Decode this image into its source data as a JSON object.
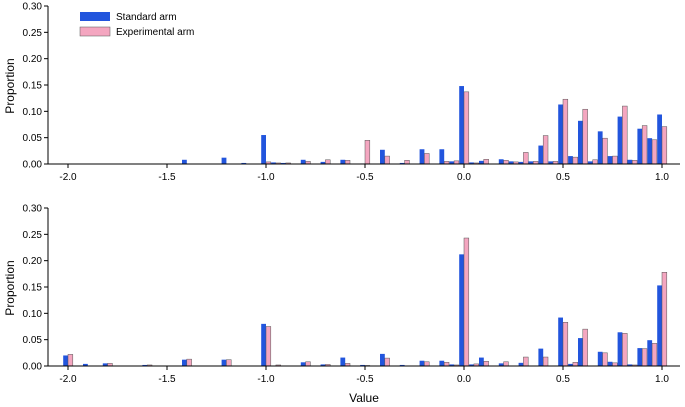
{
  "chart_data": {
    "type": "bar",
    "legend": {
      "placement": "top-left",
      "entries": [
        {
          "name": "Standard arm",
          "color": "#2255dd"
        },
        {
          "name": "Experimental arm",
          "color": "#f4a6c0"
        }
      ]
    },
    "x_label": "Value",
    "x_ticks": [
      "-2.0",
      "-1.5",
      "-1.0",
      "-0.5",
      "0.0",
      "0.5",
      "1.0"
    ],
    "x_range": [
      -2.0,
      1.0
    ],
    "x_values": [
      -2.0,
      -1.9,
      -1.8,
      -1.7,
      -1.6,
      -1.5,
      -1.4,
      -1.3,
      -1.2,
      -1.1,
      -1.0,
      -0.95,
      -0.9,
      -0.8,
      -0.7,
      -0.6,
      -0.5,
      -0.45,
      -0.4,
      -0.3,
      -0.2,
      -0.1,
      -0.05,
      0.0,
      0.05,
      0.1,
      0.15,
      0.2,
      0.25,
      0.3,
      0.35,
      0.4,
      0.45,
      0.5,
      0.55,
      0.6,
      0.65,
      0.7,
      0.75,
      0.8,
      0.85,
      0.9,
      0.95,
      1.0
    ],
    "panels": [
      {
        "y_label": "Proportion",
        "y_ticks": [
          "0.00",
          "0.05",
          "0.10",
          "0.15",
          "0.20",
          "0.25",
          "0.30"
        ],
        "y_range": [
          0,
          0.3
        ],
        "series": [
          {
            "name": "Standard arm",
            "values": [
              0,
              0,
              0,
              0,
              0,
              0,
              0.008,
              0,
              0.012,
              0.002,
              0.055,
              0.003,
              0.002,
              0.008,
              0.004,
              0.008,
              0.001,
              0,
              0.027,
              0.002,
              0.028,
              0.028,
              0.005,
              0.148,
              0.003,
              0.006,
              0,
              0.009,
              0.005,
              0.004,
              0.005,
              0.035,
              0.005,
              0.113,
              0.015,
              0.082,
              0.005,
              0.062,
              0.015,
              0.09,
              0.008,
              0.067,
              0.049,
              0.094
            ]
          },
          {
            "name": "Experimental arm",
            "values": [
              0,
              0,
              0,
              0,
              0,
              0,
              0,
              0,
              0,
              0,
              0.004,
              0.002,
              0.002,
              0.005,
              0.008,
              0.007,
              0.045,
              0,
              0.015,
              0.007,
              0.02,
              0.005,
              0.006,
              0.137,
              0.002,
              0.009,
              0,
              0.007,
              0.004,
              0.022,
              0.005,
              0.054,
              0.005,
              0.123,
              0.013,
              0.104,
              0.008,
              0.049,
              0.015,
              0.11,
              0.007,
              0.073,
              0.046,
              0.071
            ]
          }
        ]
      },
      {
        "y_label": "Proportion",
        "y_ticks": [
          "0.00",
          "0.05",
          "0.10",
          "0.15",
          "0.20",
          "0.25",
          "0.30"
        ],
        "y_range": [
          0,
          0.3
        ],
        "series": [
          {
            "name": "Standard arm",
            "values": [
              0.02,
              0.004,
              0.005,
              0,
              0.002,
              0,
              0.012,
              0,
              0.012,
              0,
              0.08,
              0,
              0,
              0.007,
              0.003,
              0.016,
              0.002,
              0,
              0.023,
              0.002,
              0.01,
              0.01,
              0.003,
              0.212,
              0.003,
              0.016,
              0,
              0.005,
              0,
              0.006,
              0,
              0.033,
              0,
              0.092,
              0.004,
              0.053,
              0,
              0.027,
              0.008,
              0.064,
              0.003,
              0.034,
              0.049,
              0.153
            ]
          },
          {
            "name": "Experimental arm",
            "values": [
              0.022,
              0,
              0.005,
              0,
              0.002,
              0,
              0.013,
              0,
              0.012,
              0,
              0.075,
              0.002,
              0,
              0.008,
              0.003,
              0.005,
              0.001,
              0,
              0.015,
              0,
              0.008,
              0.007,
              0.002,
              0.243,
              0.004,
              0.009,
              0,
              0.008,
              0,
              0.017,
              0,
              0.017,
              0,
              0.083,
              0.007,
              0.07,
              0,
              0.025,
              0.006,
              0.062,
              0.002,
              0.033,
              0.043,
              0.178
            ]
          }
        ]
      }
    ]
  }
}
